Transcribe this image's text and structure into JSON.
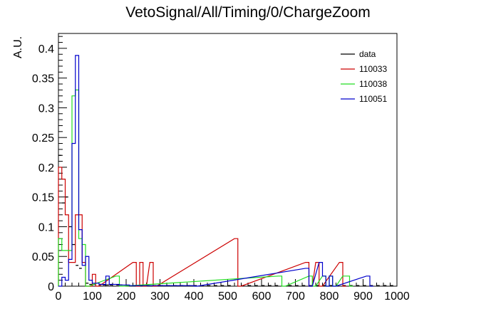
{
  "chart_data": {
    "type": "histogram",
    "title": "VetoSignal/All/Timing/0/ChargeZoom",
    "xlabel": "",
    "ylabel": "A.U.",
    "xlim": [
      0,
      1000
    ],
    "ylim": [
      0,
      0.425
    ],
    "bin_width": 10,
    "x_ticks": [
      0,
      100,
      200,
      300,
      400,
      500,
      600,
      700,
      800,
      900,
      1000
    ],
    "x_tick_labels": [
      "0",
      "100",
      "200",
      "300",
      "400",
      "500",
      "600",
      "700",
      "800",
      "900",
      "1000"
    ],
    "y_ticks": [
      0,
      0.05,
      0.1,
      0.15,
      0.2,
      0.25,
      0.3,
      0.35,
      0.4
    ],
    "y_tick_labels": [
      "0",
      "0.05",
      "0.1",
      "0.15",
      "0.2",
      "0.25",
      "0.3",
      "0.35",
      "0.4"
    ],
    "legend_position": "top-right",
    "series": [
      {
        "name": "data",
        "color": "#000000",
        "style": "points",
        "points": [
          [
            5,
            0.22
          ],
          [
            15,
            0.14
          ],
          [
            25,
            0.15
          ],
          [
            35,
            0.1
          ],
          [
            45,
            0.07
          ],
          [
            55,
            0.035
          ],
          [
            65,
            0.03
          ],
          [
            85,
            0.005
          ],
          [
            95,
            0.003
          ],
          [
            105,
            0.003
          ],
          [
            125,
            0.003
          ],
          [
            135,
            0.002
          ],
          [
            145,
            0.002
          ],
          [
            155,
            0.002
          ],
          [
            175,
            0.002
          ],
          [
            185,
            0.002
          ],
          [
            205,
            0.001
          ],
          [
            225,
            0.001
          ],
          [
            235,
            0.001
          ],
          [
            245,
            0.001
          ],
          [
            265,
            0.001
          ],
          [
            285,
            0.001
          ],
          [
            305,
            0.001
          ],
          [
            325,
            0.001
          ],
          [
            345,
            0.001
          ],
          [
            365,
            0.001
          ],
          [
            385,
            0.001
          ],
          [
            405,
            0.001
          ],
          [
            425,
            0.001
          ],
          [
            445,
            0.001
          ],
          [
            465,
            0.001
          ],
          [
            485,
            0.001
          ],
          [
            505,
            0.001
          ],
          [
            545,
            0.001
          ],
          [
            565,
            0.001
          ],
          [
            585,
            0.001
          ],
          [
            605,
            0.001
          ],
          [
            625,
            0.001
          ],
          [
            645,
            0.001
          ],
          [
            685,
            0.001
          ],
          [
            705,
            0.001
          ],
          [
            725,
            0.001
          ],
          [
            745,
            0.001
          ],
          [
            765,
            0.001
          ],
          [
            785,
            0.001
          ],
          [
            805,
            0.001
          ],
          [
            825,
            0.001
          ],
          [
            845,
            0.001
          ],
          [
            865,
            0.001
          ],
          [
            885,
            0.001
          ],
          [
            905,
            0.001
          ],
          [
            925,
            0.001
          ],
          [
            945,
            0.001
          ],
          [
            965,
            0.001
          ],
          [
            985,
            0.001
          ]
        ]
      },
      {
        "name": "110033",
        "color": "#cc0000",
        "style": "step",
        "bins": [
          [
            0,
            0.2
          ],
          [
            10,
            0.18
          ],
          [
            20,
            0.12
          ],
          [
            30,
            0.04
          ],
          [
            40,
            0.04
          ],
          [
            50,
            0.12
          ],
          [
            60,
            0.12
          ],
          [
            70,
            0.04
          ],
          [
            80,
            0.0
          ],
          [
            90,
            0.0
          ],
          [
            100,
            0.02
          ],
          [
            110,
            0.0
          ],
          [
            220,
            0.04
          ],
          [
            230,
            0.0
          ],
          [
            240,
            0.04
          ],
          [
            250,
            0.0
          ],
          [
            270,
            0.04
          ],
          [
            280,
            0.0
          ],
          [
            520,
            0.08
          ],
          [
            530,
            0.0
          ],
          [
            730,
            0.04
          ],
          [
            740,
            0.0
          ],
          [
            760,
            0.04
          ],
          [
            770,
            0.0
          ],
          [
            830,
            0.04
          ],
          [
            840,
            0.0
          ]
        ]
      },
      {
        "name": "110038",
        "color": "#22dd22",
        "style": "step",
        "bins": [
          [
            0,
            0.08
          ],
          [
            10,
            0.06
          ],
          [
            20,
            0.06
          ],
          [
            30,
            0.06
          ],
          [
            40,
            0.32
          ],
          [
            50,
            0.33
          ],
          [
            60,
            0.08
          ],
          [
            70,
            0.07
          ],
          [
            80,
            0.0
          ],
          [
            170,
            0.017
          ],
          [
            180,
            0.0
          ],
          [
            650,
            0.017
          ],
          [
            660,
            0.0
          ],
          [
            740,
            0.017
          ],
          [
            750,
            0.0
          ],
          [
            780,
            0.017
          ],
          [
            790,
            0.0
          ],
          [
            800,
            0.017
          ],
          [
            810,
            0.0
          ],
          [
            840,
            0.017
          ],
          [
            850,
            0.017
          ],
          [
            860,
            0.0
          ]
        ]
      },
      {
        "name": "110051",
        "color": "#0000cc",
        "style": "step",
        "bins": [
          [
            0,
            0.0
          ],
          [
            10,
            0.015
          ],
          [
            20,
            0.01
          ],
          [
            30,
            0.045
          ],
          [
            40,
            0.24
          ],
          [
            50,
            0.388
          ],
          [
            60,
            0.095
          ],
          [
            70,
            0.035
          ],
          [
            80,
            0.05
          ],
          [
            90,
            0.01
          ],
          [
            100,
            0.005
          ],
          [
            110,
            0.005
          ],
          [
            120,
            0.003
          ],
          [
            130,
            0.003
          ],
          [
            140,
            0.017
          ],
          [
            150,
            0.003
          ],
          [
            160,
            0.003
          ],
          [
            170,
            0.003
          ],
          [
            180,
            0.002
          ],
          [
            190,
            0.002
          ],
          [
            200,
            0.002
          ],
          [
            210,
            0.001
          ],
          [
            220,
            0.001
          ],
          [
            230,
            0.001
          ],
          [
            240,
            0.001
          ],
          [
            250,
            0.001
          ],
          [
            260,
            0.001
          ],
          [
            270,
            0.001
          ],
          [
            280,
            0.001
          ],
          [
            290,
            0.001
          ],
          [
            300,
            0.001
          ],
          [
            310,
            0.001
          ],
          [
            320,
            0.001
          ],
          [
            330,
            0.001
          ],
          [
            340,
            0.001
          ],
          [
            350,
            0.001
          ],
          [
            360,
            0.001
          ],
          [
            370,
            0.001
          ],
          [
            380,
            0.001
          ],
          [
            390,
            0.001
          ],
          [
            400,
            0.0
          ],
          [
            730,
            0.03
          ],
          [
            740,
            0.0
          ],
          [
            770,
            0.04
          ],
          [
            780,
            0.017
          ],
          [
            790,
            0.0
          ],
          [
            800,
            0.017
          ],
          [
            810,
            0.0
          ],
          [
            910,
            0.017
          ],
          [
            920,
            0.0
          ]
        ]
      }
    ]
  }
}
